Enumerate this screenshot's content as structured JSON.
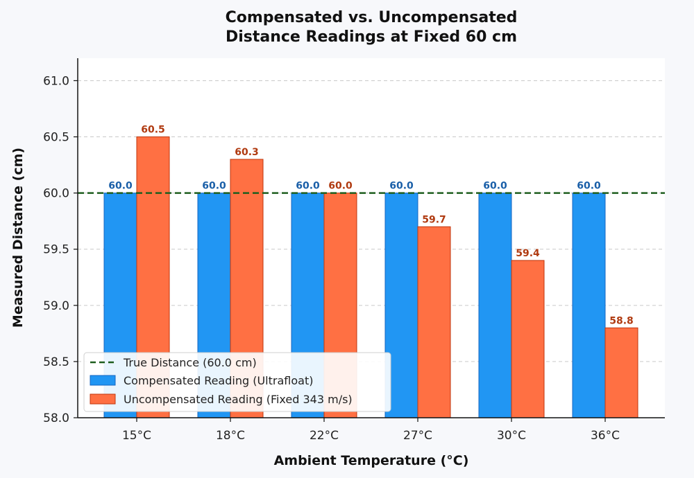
{
  "chart_data": {
    "type": "bar",
    "title": [
      "Compensated vs. Uncompensated",
      "Distance Readings at Fixed 60 cm"
    ],
    "xlabel": "Ambient Temperature (°C)",
    "ylabel": "Measured Distance (cm)",
    "categories": [
      "15°C",
      "18°C",
      "22°C",
      "27°C",
      "30°C",
      "36°C"
    ],
    "ylim": [
      58.0,
      61.2
    ],
    "yticks": [
      "58.0",
      "58.5",
      "59.0",
      "59.5",
      "60.0",
      "60.5",
      "61.0"
    ],
    "grid": true,
    "legend_position": "lower-left",
    "reference_line": {
      "name": "True Distance (60.0 cm)",
      "value": 60.0,
      "color": "#1e5e1e"
    },
    "series": [
      {
        "name": "Compensated Reading (Ultrafloat)",
        "values": [
          60.0,
          60.0,
          60.0,
          60.0,
          60.0,
          60.0
        ],
        "labels": [
          "60.0",
          "60.0",
          "60.0",
          "60.0",
          "60.0",
          "60.0"
        ],
        "color": "#2196f3",
        "edge_color": "#1565c0",
        "label_color": "#1a5fa8"
      },
      {
        "name": "Uncompensated Reading (Fixed 343 m/s)",
        "values": [
          60.5,
          60.3,
          60.0,
          59.7,
          59.4,
          58.8
        ],
        "labels": [
          "60.5",
          "60.3",
          "60.0",
          "59.7",
          "59.4",
          "58.8"
        ],
        "color": "#ff7043",
        "edge_color": "#bf360c",
        "label_color": "#b03a10"
      }
    ]
  }
}
